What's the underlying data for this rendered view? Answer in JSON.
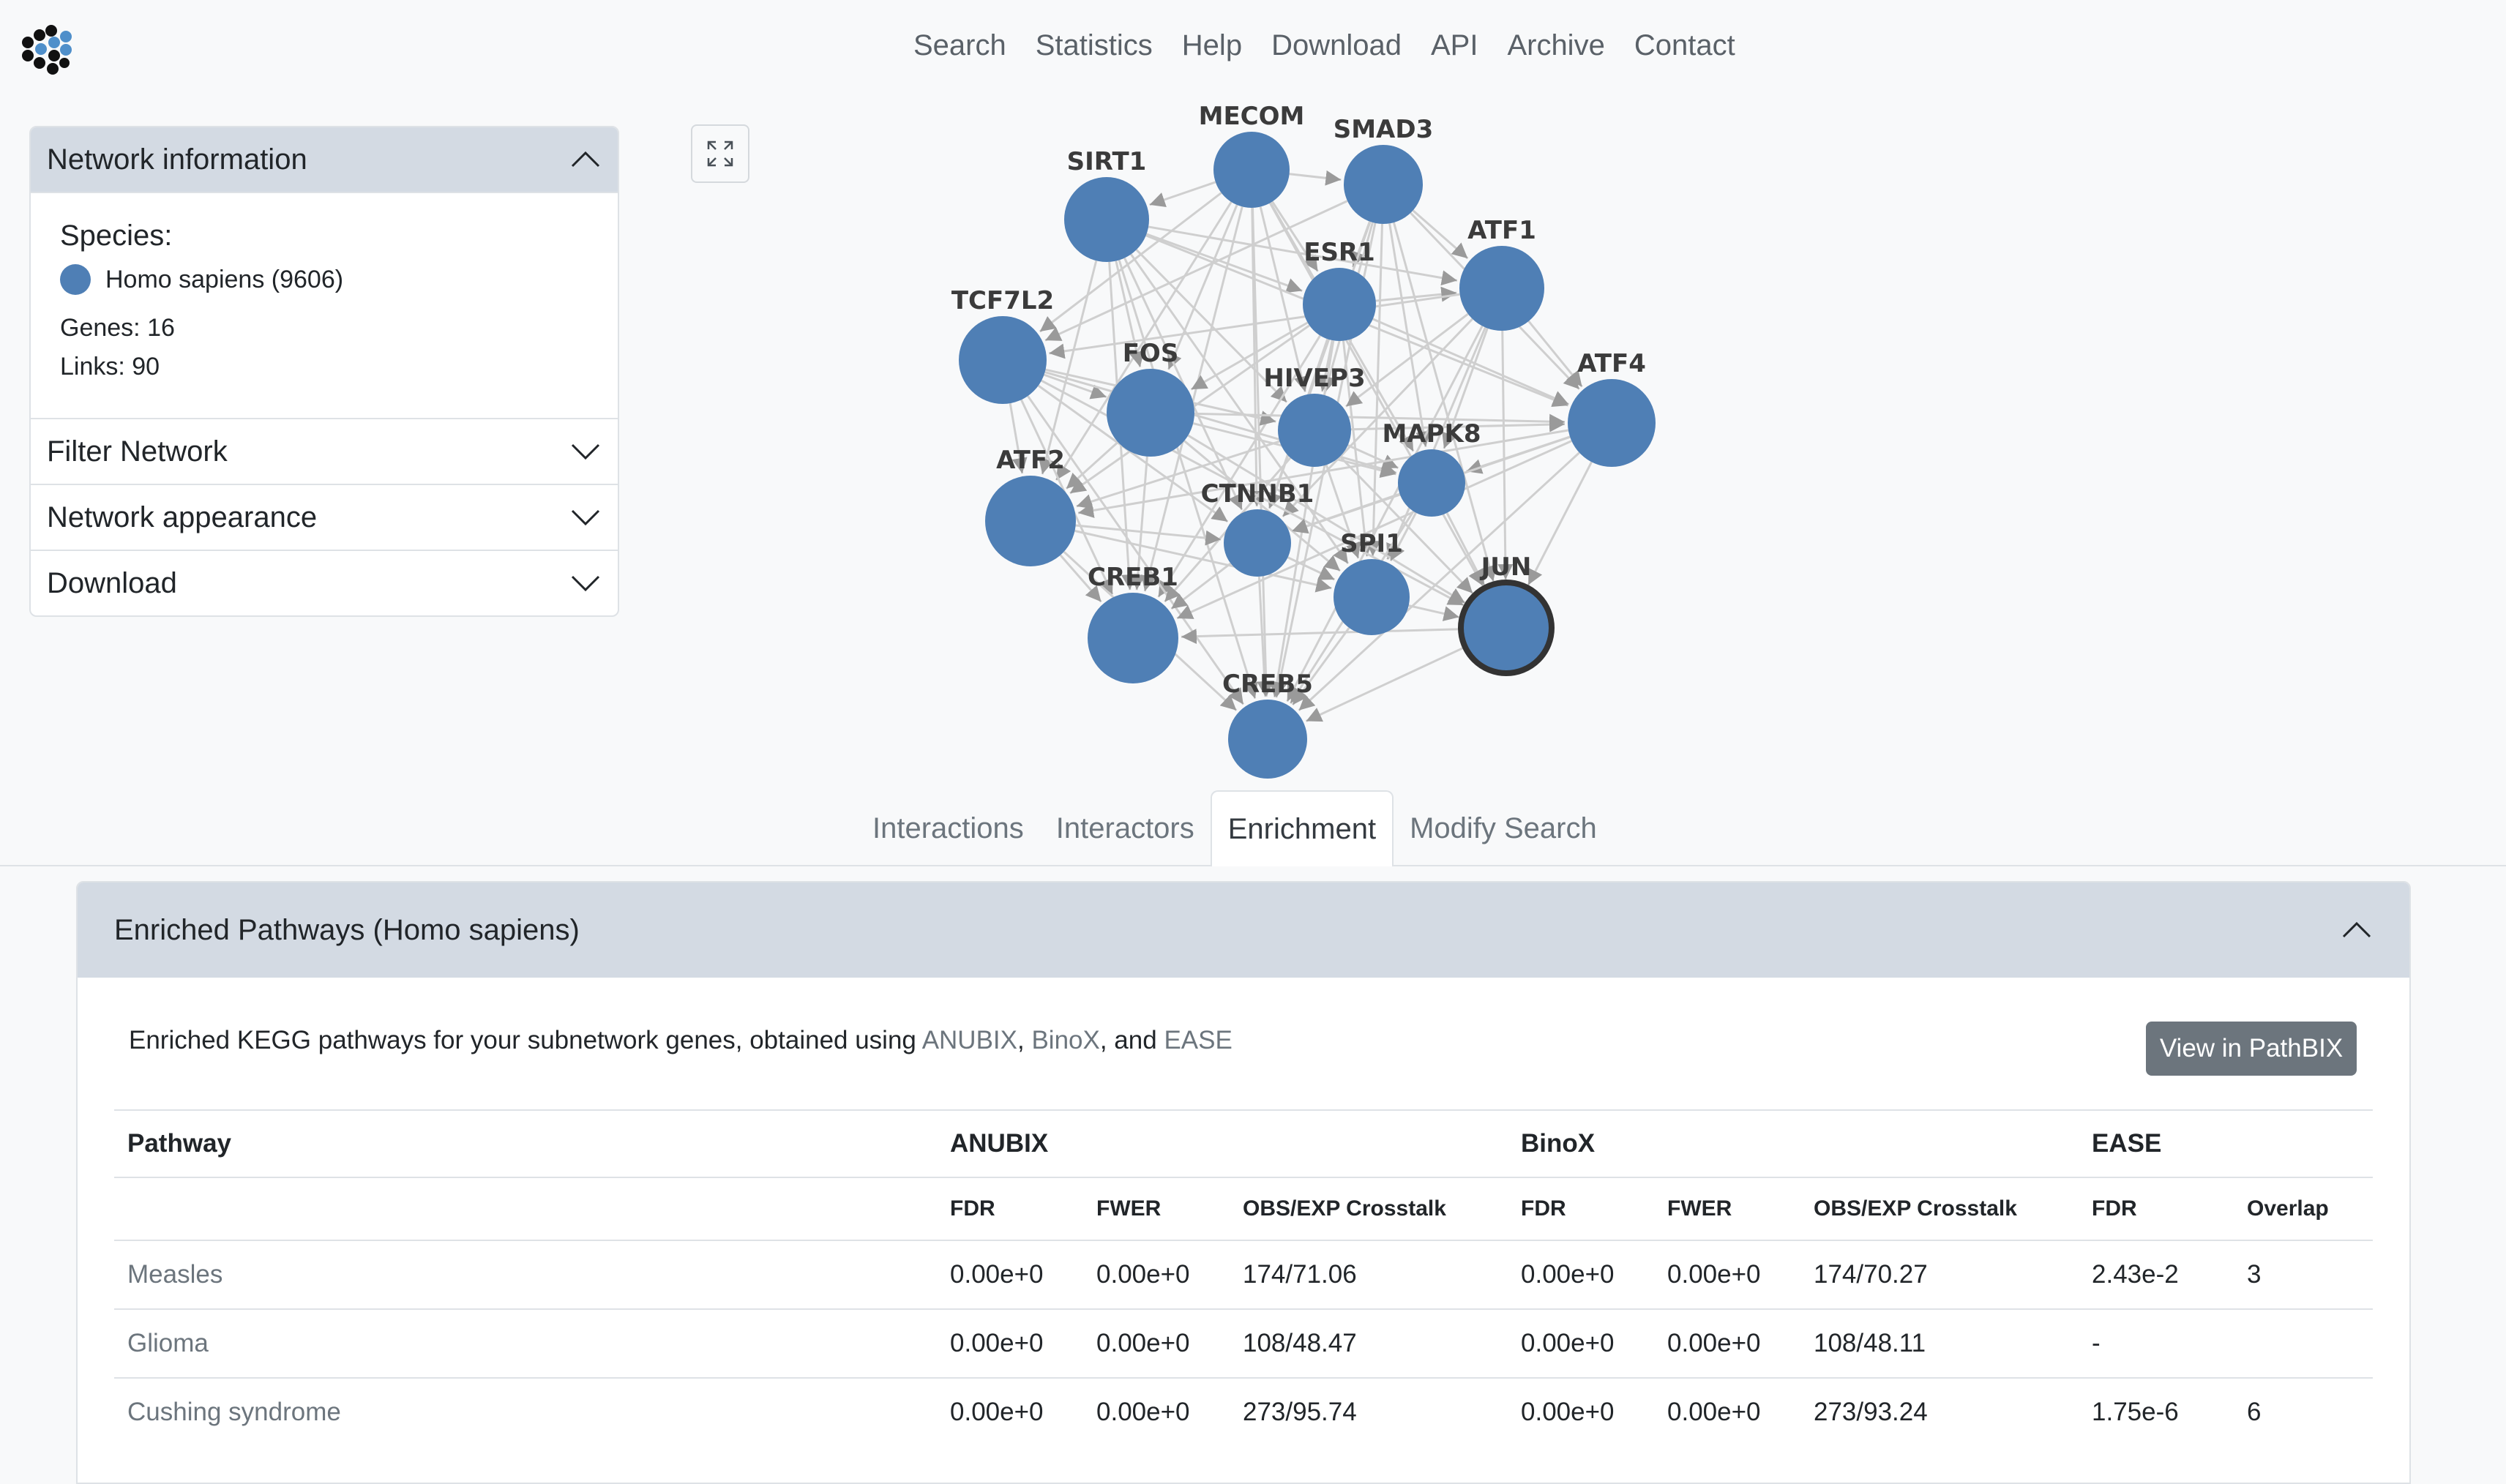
{
  "nav": {
    "links": [
      "Search",
      "Statistics",
      "Help",
      "Download",
      "API",
      "Archive",
      "Contact"
    ]
  },
  "sidebar": {
    "network_info": {
      "title": "Network information",
      "species_label": "Species:",
      "species_value": "Homo sapiens (9606)",
      "genes": "Genes: 16",
      "links": "Links: 90"
    },
    "sections": [
      "Filter Network",
      "Network appearance",
      "Download"
    ]
  },
  "network": {
    "nodes": [
      "MECOM",
      "SMAD3",
      "SIRT1",
      "ESR1",
      "ATF1",
      "TCF7L2",
      "FOS",
      "HIVEP3",
      "ATF4",
      "MAPK8",
      "ATF2",
      "CTNNB1",
      "SPI1",
      "JUN",
      "CREB1",
      "CREB5"
    ],
    "selected_node": "JUN",
    "node_color": "#4f7fb5"
  },
  "tabs": [
    "Interactions",
    "Interactors",
    "Enrichment",
    "Modify Search"
  ],
  "active_tab": "Enrichment",
  "enrichment": {
    "title": "Enriched Pathways (Homo sapiens)",
    "intro_prefix": "Enriched KEGG pathways for your subnetwork genes, obtained using ",
    "intro_link1": "ANUBIX",
    "intro_sep1": ", ",
    "intro_link2": "BinoX",
    "intro_sep2": ", and ",
    "intro_link3": "EASE",
    "button": "View in PathBIX",
    "group_headers": [
      "Pathway",
      "ANUBIX",
      "BinoX",
      "EASE"
    ],
    "sub_headers": [
      "FDR",
      "FWER",
      "OBS/EXP Crosstalk",
      "FDR",
      "FWER",
      "OBS/EXP Crosstalk",
      "FDR",
      "Overlap"
    ],
    "rows": [
      [
        "Measles",
        "0.00e+0",
        "0.00e+0",
        "174/71.06",
        "0.00e+0",
        "0.00e+0",
        "174/70.27",
        "2.43e-2",
        "3"
      ],
      [
        "Glioma",
        "0.00e+0",
        "0.00e+0",
        "108/48.47",
        "0.00e+0",
        "0.00e+0",
        "108/48.11",
        "-",
        ""
      ],
      [
        "Cushing syndrome",
        "0.00e+0",
        "0.00e+0",
        "273/95.74",
        "0.00e+0",
        "0.00e+0",
        "273/93.24",
        "1.75e-6",
        "6"
      ]
    ]
  }
}
